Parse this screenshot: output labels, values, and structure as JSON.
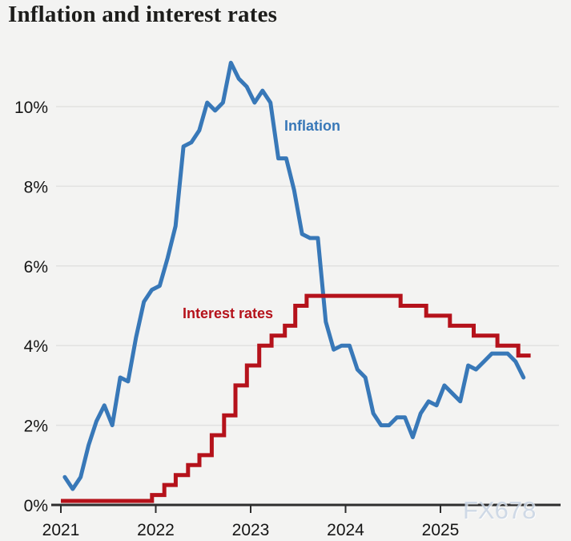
{
  "title": "Inflation and interest rates",
  "watermark": "FX678",
  "colors": {
    "background": "#f3f3f2",
    "inflation": "#3878b8",
    "rates": "#b5121b",
    "grid": "#e1e1e0",
    "axis": "#2d2d2d",
    "tick_text": "#151515",
    "title_text": "#1d1d1b",
    "watermark_text": "#c9d5e5"
  },
  "chart_data": {
    "type": "line",
    "title": "Inflation and interest rates",
    "xlabel": "",
    "ylabel": "",
    "grid": true,
    "xlim": [
      2021,
      2026
    ],
    "ylim": [
      0,
      11.5
    ],
    "x_ticks": [
      2021,
      2022,
      2023,
      2024,
      2025
    ],
    "y_ticks": [
      {
        "label": "0%",
        "value": 0
      },
      {
        "label": "2%",
        "value": 2
      },
      {
        "label": "4%",
        "value": 4
      },
      {
        "label": "6%",
        "value": 6
      },
      {
        "label": "8%",
        "value": 8
      },
      {
        "label": "10%",
        "value": 10
      }
    ],
    "series": [
      {
        "name": "Inflation",
        "type": "line",
        "color": "#3878b8",
        "unit": "%",
        "start_month": "2021-01",
        "frequency": "monthly",
        "values": [
          0.7,
          0.4,
          0.7,
          1.5,
          2.1,
          2.5,
          2.0,
          3.2,
          3.1,
          4.2,
          5.1,
          5.4,
          5.5,
          6.2,
          7.0,
          9.0,
          9.1,
          9.4,
          10.1,
          9.9,
          10.1,
          11.1,
          10.7,
          10.5,
          10.1,
          10.4,
          10.1,
          8.7,
          8.7,
          7.9,
          6.8,
          6.7,
          6.7,
          4.6,
          3.9,
          4.0,
          4.0,
          3.4,
          3.2,
          2.3,
          2.0,
          2.0,
          2.2,
          2.2,
          1.7,
          2.3,
          2.6,
          2.5,
          3.0,
          2.8,
          2.6,
          3.5,
          3.4,
          3.6,
          3.8,
          3.8,
          3.8,
          3.6,
          3.2
        ]
      },
      {
        "name": "Interest rates",
        "type": "step",
        "color": "#b5121b",
        "unit": "%",
        "points": [
          {
            "t": 2021.0,
            "rate": 0.1
          },
          {
            "t": 2021.96,
            "rate": 0.25
          },
          {
            "t": 2022.09,
            "rate": 0.5
          },
          {
            "t": 2022.21,
            "rate": 0.75
          },
          {
            "t": 2022.34,
            "rate": 1.0
          },
          {
            "t": 2022.46,
            "rate": 1.25
          },
          {
            "t": 2022.59,
            "rate": 1.75
          },
          {
            "t": 2022.72,
            "rate": 2.25
          },
          {
            "t": 2022.84,
            "rate": 3.0
          },
          {
            "t": 2022.96,
            "rate": 3.5
          },
          {
            "t": 2023.09,
            "rate": 4.0
          },
          {
            "t": 2023.22,
            "rate": 4.25
          },
          {
            "t": 2023.36,
            "rate": 4.5
          },
          {
            "t": 2023.47,
            "rate": 5.0
          },
          {
            "t": 2023.59,
            "rate": 5.25
          },
          {
            "t": 2024.58,
            "rate": 5.0
          },
          {
            "t": 2024.85,
            "rate": 4.75
          },
          {
            "t": 2025.1,
            "rate": 4.5
          },
          {
            "t": 2025.35,
            "rate": 4.25
          },
          {
            "t": 2025.6,
            "rate": 4.0
          },
          {
            "t": 2025.82,
            "rate": 3.75
          }
        ],
        "end_t": 2025.95
      }
    ],
    "legend_position": "inline-labels"
  }
}
